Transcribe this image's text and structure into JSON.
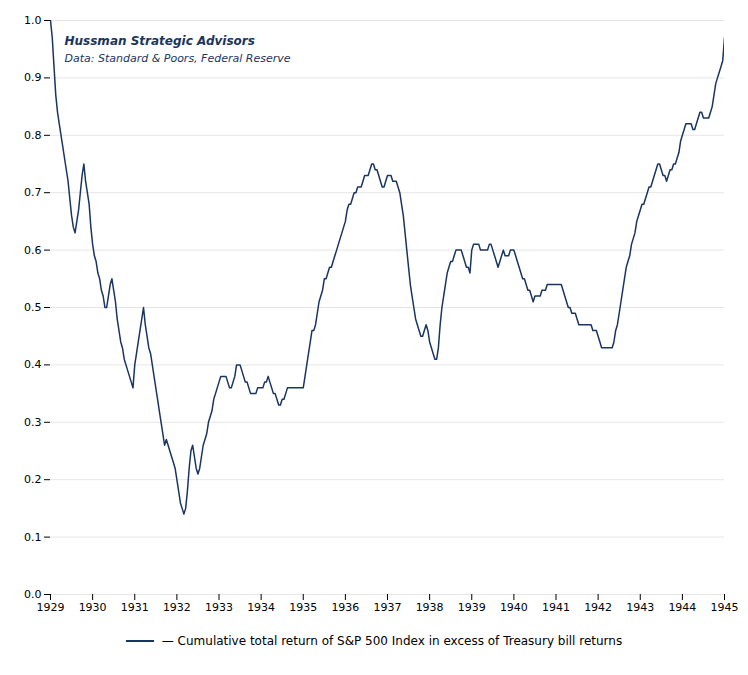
{
  "chart_data": {
    "type": "line",
    "annotations": [
      "Hussman Strategic Advisors",
      "Data: Standard & Poors, Federal Reserve"
    ],
    "xlim": [
      1929,
      1945
    ],
    "xticks": [
      1929,
      1930,
      1931,
      1932,
      1933,
      1934,
      1935,
      1936,
      1937,
      1938,
      1939,
      1940,
      1941,
      1942,
      1943,
      1944,
      1945
    ],
    "ylim": [
      0,
      1
    ],
    "yticks": [
      {
        "value": 0,
        "label": "0.0"
      },
      0.1,
      0.2,
      0.3,
      0.4,
      0.5,
      0.6,
      0.7,
      0.8,
      0.9,
      {
        "value": 1,
        "label": "1.0"
      }
    ],
    "grid": "y",
    "legend": "bottom",
    "x": [
      1929.0,
      1929.042,
      1929.083,
      1929.125,
      1929.167,
      1929.208,
      1929.25,
      1929.292,
      1929.333,
      1929.375,
      1929.417,
      1929.458,
      1929.5,
      1929.542,
      1929.583,
      1929.625,
      1929.667,
      1929.708,
      1929.75,
      1929.792,
      1929.833,
      1929.875,
      1929.917,
      1929.958,
      1930.0,
      1930.042,
      1930.083,
      1930.125,
      1930.167,
      1930.208,
      1930.25,
      1930.292,
      1930.333,
      1930.375,
      1930.417,
      1930.458,
      1930.5,
      1930.542,
      1930.583,
      1930.625,
      1930.667,
      1930.708,
      1930.75,
      1930.792,
      1930.833,
      1930.875,
      1930.917,
      1930.958,
      1931.0,
      1931.042,
      1931.083,
      1931.125,
      1931.167,
      1931.208,
      1931.25,
      1931.292,
      1931.333,
      1931.375,
      1931.417,
      1931.458,
      1931.5,
      1931.542,
      1931.583,
      1931.625,
      1931.667,
      1931.708,
      1931.75,
      1931.792,
      1931.833,
      1931.875,
      1931.917,
      1931.958,
      1932.0,
      1932.042,
      1932.083,
      1932.125,
      1932.167,
      1932.208,
      1932.25,
      1932.292,
      1932.333,
      1932.375,
      1932.417,
      1932.458,
      1932.5,
      1932.542,
      1932.583,
      1932.625,
      1932.667,
      1932.708,
      1932.75,
      1932.792,
      1932.833,
      1932.875,
      1932.917,
      1932.958,
      1933.0,
      1933.042,
      1933.083,
      1933.125,
      1933.167,
      1933.208,
      1933.25,
      1933.292,
      1933.333,
      1933.375,
      1933.417,
      1933.458,
      1933.5,
      1933.542,
      1933.583,
      1933.625,
      1933.667,
      1933.708,
      1933.75,
      1933.792,
      1933.833,
      1933.875,
      1933.917,
      1933.958,
      1934.0,
      1934.042,
      1934.083,
      1934.125,
      1934.167,
      1934.208,
      1934.25,
      1934.292,
      1934.333,
      1934.375,
      1934.417,
      1934.458,
      1934.5,
      1934.542,
      1934.583,
      1934.625,
      1934.667,
      1934.708,
      1934.75,
      1934.792,
      1934.833,
      1934.875,
      1934.917,
      1934.958,
      1935.0,
      1935.042,
      1935.083,
      1935.125,
      1935.167,
      1935.208,
      1935.25,
      1935.292,
      1935.333,
      1935.375,
      1935.417,
      1935.458,
      1935.5,
      1935.542,
      1935.583,
      1935.625,
      1935.667,
      1935.708,
      1935.75,
      1935.792,
      1935.833,
      1935.875,
      1935.917,
      1935.958,
      1936.0,
      1936.042,
      1936.083,
      1936.125,
      1936.167,
      1936.208,
      1936.25,
      1936.292,
      1936.333,
      1936.375,
      1936.417,
      1936.458,
      1936.5,
      1936.542,
      1936.583,
      1936.625,
      1936.667,
      1936.708,
      1936.75,
      1936.792,
      1936.833,
      1936.875,
      1936.917,
      1936.958,
      1937.0,
      1937.042,
      1937.083,
      1937.125,
      1937.167,
      1937.208,
      1937.25,
      1937.292,
      1937.333,
      1937.375,
      1937.417,
      1937.458,
      1937.5,
      1937.542,
      1937.583,
      1937.625,
      1937.667,
      1937.708,
      1937.75,
      1937.792,
      1937.833,
      1937.875,
      1937.917,
      1937.958,
      1938.0,
      1938.042,
      1938.083,
      1938.125,
      1938.167,
      1938.208,
      1938.25,
      1938.292,
      1938.333,
      1938.375,
      1938.417,
      1938.458,
      1938.5,
      1938.542,
      1938.583,
      1938.625,
      1938.667,
      1938.708,
      1938.75,
      1938.792,
      1938.833,
      1938.875,
      1938.917,
      1938.958,
      1939.0,
      1939.042,
      1939.083,
      1939.125,
      1939.167,
      1939.208,
      1939.25,
      1939.292,
      1939.333,
      1939.375,
      1939.417,
      1939.458,
      1939.5,
      1939.542,
      1939.583,
      1939.625,
      1939.667,
      1939.708,
      1939.75,
      1939.792,
      1939.833,
      1939.875,
      1939.917,
      1939.958,
      1940.0,
      1940.042,
      1940.083,
      1940.125,
      1940.167,
      1940.208,
      1940.25,
      1940.292,
      1940.333,
      1940.375,
      1940.417,
      1940.458,
      1940.5,
      1940.542,
      1940.583,
      1940.625,
      1940.667,
      1940.708,
      1940.75,
      1940.792,
      1940.833,
      1940.875,
      1940.917,
      1940.958,
      1941.0,
      1941.042,
      1941.083,
      1941.125,
      1941.167,
      1941.208,
      1941.25,
      1941.292,
      1941.333,
      1941.375,
      1941.417,
      1941.458,
      1941.5,
      1941.542,
      1941.583,
      1941.625,
      1941.667,
      1941.708,
      1941.75,
      1941.792,
      1941.833,
      1941.875,
      1941.917,
      1941.958,
      1942.0,
      1942.042,
      1942.083,
      1942.125,
      1942.167,
      1942.208,
      1942.25,
      1942.292,
      1942.333,
      1942.375,
      1942.417,
      1942.458,
      1942.5,
      1942.542,
      1942.583,
      1942.625,
      1942.667,
      1942.708,
      1942.75,
      1942.792,
      1942.833,
      1942.875,
      1942.917,
      1942.958,
      1943.0,
      1943.042,
      1943.083,
      1943.125,
      1943.167,
      1943.208,
      1943.25,
      1943.292,
      1943.333,
      1943.375,
      1943.417,
      1943.458,
      1943.5,
      1943.542,
      1943.583,
      1943.625,
      1943.667,
      1943.708,
      1943.75,
      1943.792,
      1943.833,
      1943.875,
      1943.917,
      1943.958,
      1944.0,
      1944.042,
      1944.083,
      1944.125,
      1944.167,
      1944.208,
      1944.25,
      1944.292,
      1944.333,
      1944.375,
      1944.417,
      1944.458,
      1944.5,
      1944.542,
      1944.583,
      1944.625,
      1944.667,
      1944.708,
      1944.75,
      1944.792,
      1944.833,
      1944.875,
      1944.917,
      1944.958,
      1945.0
    ],
    "series": [
      {
        "name": "— Cumulative total return of S&P 500 Index in excess of Treasury bill returns",
        "color": "#1a3560",
        "values": [
          1.0,
          0.97,
          0.92,
          0.87,
          0.84,
          0.82,
          0.8,
          0.78,
          0.76,
          0.74,
          0.72,
          0.69,
          0.66,
          0.64,
          0.63,
          0.65,
          0.67,
          0.7,
          0.73,
          0.75,
          0.72,
          0.7,
          0.68,
          0.64,
          0.61,
          0.59,
          0.58,
          0.56,
          0.55,
          0.53,
          0.52,
          0.5,
          0.5,
          0.52,
          0.54,
          0.55,
          0.53,
          0.51,
          0.48,
          0.46,
          0.44,
          0.43,
          0.41,
          0.4,
          0.39,
          0.38,
          0.37,
          0.36,
          0.4,
          0.42,
          0.44,
          0.46,
          0.48,
          0.5,
          0.47,
          0.45,
          0.43,
          0.42,
          0.4,
          0.38,
          0.36,
          0.34,
          0.32,
          0.3,
          0.28,
          0.26,
          0.27,
          0.26,
          0.25,
          0.24,
          0.23,
          0.22,
          0.2,
          0.18,
          0.16,
          0.15,
          0.14,
          0.15,
          0.18,
          0.22,
          0.25,
          0.26,
          0.24,
          0.22,
          0.21,
          0.22,
          0.24,
          0.26,
          0.27,
          0.28,
          0.3,
          0.31,
          0.32,
          0.34,
          0.35,
          0.36,
          0.37,
          0.38,
          0.38,
          0.38,
          0.38,
          0.37,
          0.36,
          0.36,
          0.37,
          0.38,
          0.4,
          0.4,
          0.4,
          0.39,
          0.38,
          0.37,
          0.37,
          0.36,
          0.35,
          0.35,
          0.35,
          0.35,
          0.36,
          0.36,
          0.36,
          0.36,
          0.37,
          0.37,
          0.38,
          0.37,
          0.36,
          0.35,
          0.35,
          0.34,
          0.33,
          0.33,
          0.34,
          0.34,
          0.35,
          0.36,
          0.36,
          0.36,
          0.36,
          0.36,
          0.36,
          0.36,
          0.36,
          0.36,
          0.36,
          0.38,
          0.4,
          0.42,
          0.44,
          0.46,
          0.46,
          0.47,
          0.49,
          0.51,
          0.52,
          0.53,
          0.55,
          0.55,
          0.56,
          0.57,
          0.57,
          0.58,
          0.59,
          0.6,
          0.61,
          0.62,
          0.63,
          0.64,
          0.65,
          0.67,
          0.68,
          0.68,
          0.69,
          0.7,
          0.7,
          0.71,
          0.71,
          0.71,
          0.72,
          0.73,
          0.73,
          0.73,
          0.74,
          0.75,
          0.75,
          0.74,
          0.74,
          0.73,
          0.72,
          0.71,
          0.71,
          0.72,
          0.73,
          0.73,
          0.73,
          0.72,
          0.72,
          0.72,
          0.71,
          0.7,
          0.68,
          0.66,
          0.63,
          0.6,
          0.57,
          0.54,
          0.52,
          0.5,
          0.48,
          0.47,
          0.46,
          0.45,
          0.45,
          0.46,
          0.47,
          0.46,
          0.44,
          0.43,
          0.42,
          0.41,
          0.41,
          0.43,
          0.47,
          0.5,
          0.52,
          0.54,
          0.56,
          0.57,
          0.58,
          0.58,
          0.59,
          0.6,
          0.6,
          0.6,
          0.6,
          0.59,
          0.58,
          0.57,
          0.57,
          0.56,
          0.6,
          0.61,
          0.61,
          0.61,
          0.61,
          0.6,
          0.6,
          0.6,
          0.6,
          0.6,
          0.61,
          0.61,
          0.6,
          0.59,
          0.58,
          0.57,
          0.58,
          0.59,
          0.6,
          0.59,
          0.59,
          0.59,
          0.6,
          0.6,
          0.6,
          0.59,
          0.58,
          0.57,
          0.56,
          0.55,
          0.55,
          0.54,
          0.53,
          0.53,
          0.52,
          0.51,
          0.52,
          0.52,
          0.52,
          0.52,
          0.53,
          0.53,
          0.53,
          0.54,
          0.54,
          0.54,
          0.54,
          0.54,
          0.54,
          0.54,
          0.54,
          0.54,
          0.53,
          0.52,
          0.51,
          0.5,
          0.5,
          0.49,
          0.49,
          0.49,
          0.48,
          0.47,
          0.47,
          0.47,
          0.47,
          0.47,
          0.47,
          0.47,
          0.47,
          0.46,
          0.46,
          0.46,
          0.45,
          0.44,
          0.43,
          0.43,
          0.43,
          0.43,
          0.43,
          0.43,
          0.43,
          0.44,
          0.46,
          0.47,
          0.49,
          0.51,
          0.53,
          0.55,
          0.57,
          0.58,
          0.59,
          0.61,
          0.62,
          0.63,
          0.65,
          0.66,
          0.67,
          0.68,
          0.68,
          0.69,
          0.7,
          0.71,
          0.71,
          0.72,
          0.73,
          0.74,
          0.75,
          0.75,
          0.74,
          0.73,
          0.73,
          0.72,
          0.73,
          0.74,
          0.74,
          0.75,
          0.75,
          0.76,
          0.77,
          0.79,
          0.8,
          0.81,
          0.82,
          0.82,
          0.82,
          0.82,
          0.81,
          0.81,
          0.82,
          0.83,
          0.84,
          0.84,
          0.83,
          0.83,
          0.83,
          0.83,
          0.84,
          0.85,
          0.87,
          0.89,
          0.9,
          0.91,
          0.92,
          0.93,
          0.97
        ]
      }
    ]
  }
}
